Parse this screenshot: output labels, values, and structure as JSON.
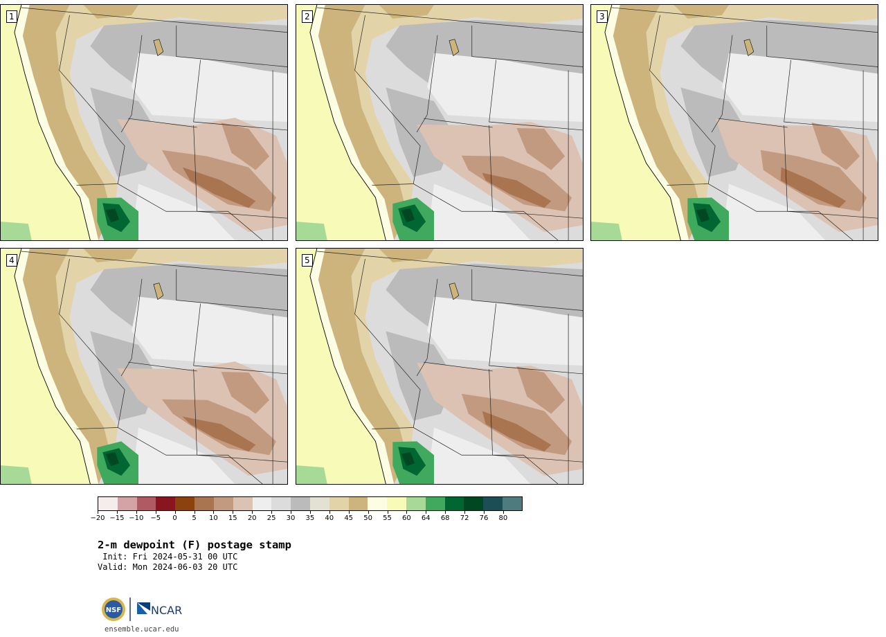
{
  "panels": [
    {
      "label": "1",
      "variant": 0
    },
    {
      "label": "2",
      "variant": 1
    },
    {
      "label": "3",
      "variant": 2
    },
    {
      "label": "4",
      "variant": 3
    },
    {
      "label": "5",
      "variant": 4
    }
  ],
  "colorbar": {
    "colors": [
      "#f5ecec",
      "#d4a3a6",
      "#b05a63",
      "#8b1421",
      "#8b420d",
      "#a97450",
      "#c29a80",
      "#dcc2b2",
      "#eeeeee",
      "#dcdcdc",
      "#bbbbbb",
      "#e2e1d4",
      "#e3d3a8",
      "#ccb47c",
      "#fdfde4",
      "#f8fbb8",
      "#a7d997",
      "#3faa5d",
      "#006632",
      "#004722",
      "#1b4f55",
      "#4e7c7e"
    ],
    "tick_labels": [
      "−20",
      "−15",
      "−10",
      "−5",
      "0",
      "5",
      "10",
      "15",
      "20",
      "25",
      "30",
      "35",
      "40",
      "45",
      "50",
      "55",
      "60",
      "64",
      "68",
      "72",
      "76",
      "80"
    ]
  },
  "title": {
    "main": "2-m dewpoint (F) postage stamp",
    "init": " Init: Fri 2024-05-31 00 UTC",
    "valid": "Valid: Mon 2024-06-03 20 UTC"
  },
  "logos": {
    "nsf_text": "NSF",
    "ncar_text": "NCAR",
    "site": "ensemble.ucar.edu"
  },
  "map_colors": {
    "ocean": "#f8fbb8",
    "ocean_near": "#fdfde4",
    "coast_green": "#a7d997",
    "tan_dark": "#ccb47c",
    "tan_light": "#e3d3a8",
    "beige": "#e2e1d4",
    "gray_dark": "#bbbbbb",
    "gray_mid": "#dcdcdc",
    "gray_light": "#eeeeee",
    "brown_light": "#dcc2b2",
    "brown_mid": "#c29a80",
    "brown_dark": "#a97450",
    "green_mid": "#3faa5d",
    "green_dark": "#006632",
    "green_deep": "#004722"
  }
}
